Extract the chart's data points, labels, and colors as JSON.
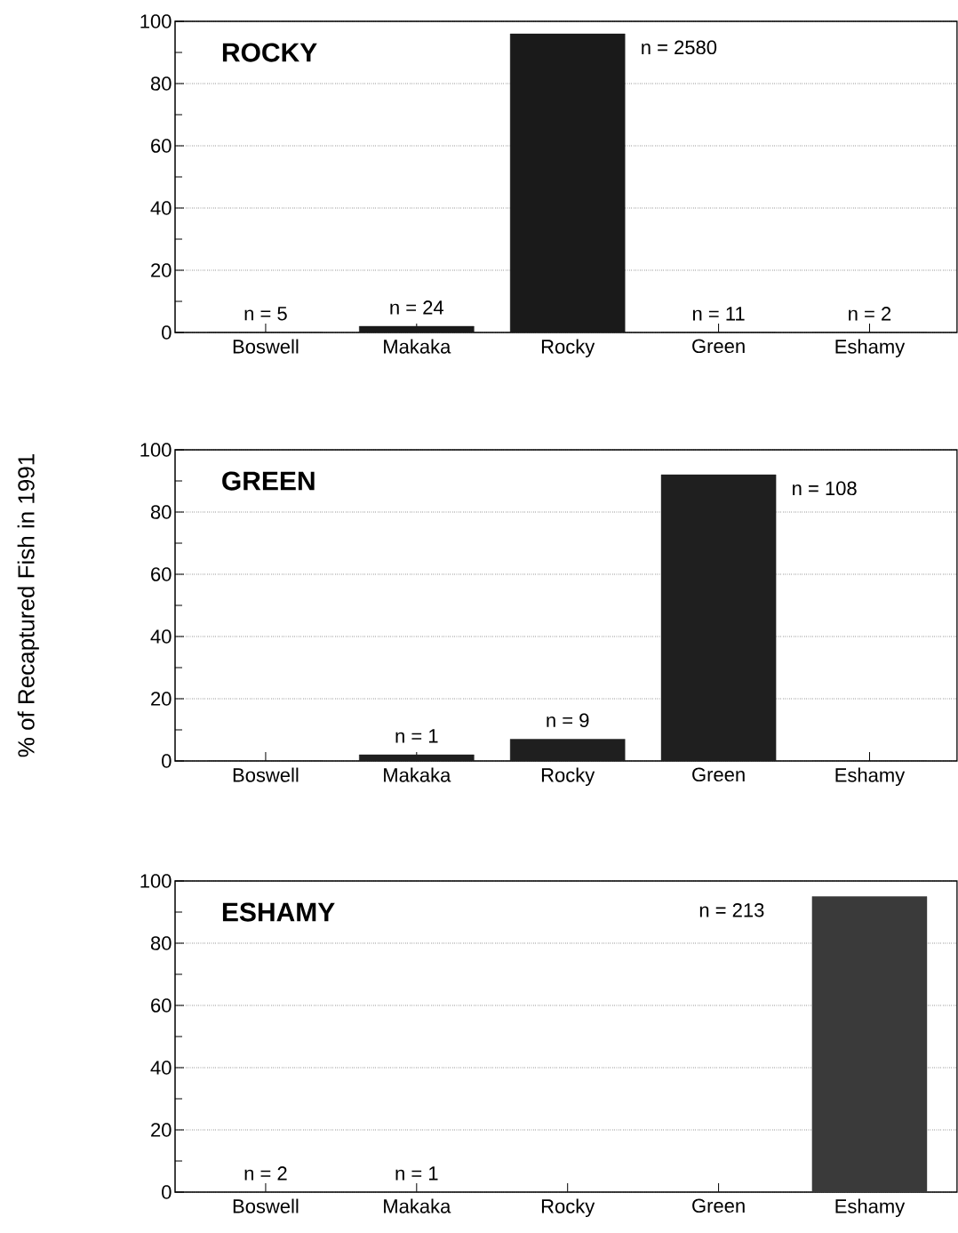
{
  "chart_data": [
    {
      "type": "bar",
      "title": "ROCKY",
      "categories": [
        "Boswell",
        "Makaka",
        "Rocky",
        "Green",
        "Eshamy"
      ],
      "values": [
        0,
        2,
        96,
        0,
        0
      ],
      "color": "#1a1a1a",
      "ylim": [
        0,
        100
      ],
      "yticks": [
        0,
        20,
        40,
        60,
        80,
        100
      ],
      "grid": "y",
      "annotations": [
        {
          "text": "n = 5",
          "x": "Boswell",
          "y": 0
        },
        {
          "text": "n = 24",
          "x": "Makaka",
          "y": 2
        },
        "n = 2580",
        {
          "text": "n = 11",
          "x": "Green",
          "y": 0
        },
        {
          "text": "n = 2",
          "x": "Eshamy",
          "y": 0
        }
      ]
    },
    {
      "type": "bar",
      "title": "GREEN",
      "ylabel": "% of Recaptured Fish in 1991",
      "categories": [
        "Boswell",
        "Makaka",
        "Rocky",
        "Green",
        "Eshamy"
      ],
      "values": [
        0,
        2,
        7,
        92,
        0
      ],
      "color": "#1f1f1f",
      "ylim": [
        0,
        100
      ],
      "yticks": [
        0,
        20,
        40,
        60,
        80,
        100
      ],
      "grid": "y",
      "annotations": [
        {
          "text": "n = 1",
          "x": "Makaka",
          "y": 2
        },
        {
          "text": "n = 9",
          "x": "Rocky",
          "y": 7
        },
        "n = 108"
      ]
    },
    {
      "type": "bar",
      "title": "ESHAMY",
      "categories": [
        "Boswell",
        "Makaka",
        "Rocky",
        "Green",
        "Eshamy"
      ],
      "values": [
        0,
        0,
        0,
        0,
        95
      ],
      "color": "#3a3a3a",
      "ylim": [
        0,
        100
      ],
      "yticks": [
        0,
        20,
        40,
        60,
        80,
        100
      ],
      "grid": "y",
      "annotations": [
        {
          "text": "n = 2",
          "x": "Boswell",
          "y": 0
        },
        {
          "text": "n = 1",
          "x": "Makaka",
          "y": 0
        },
        "n = 213"
      ]
    }
  ]
}
